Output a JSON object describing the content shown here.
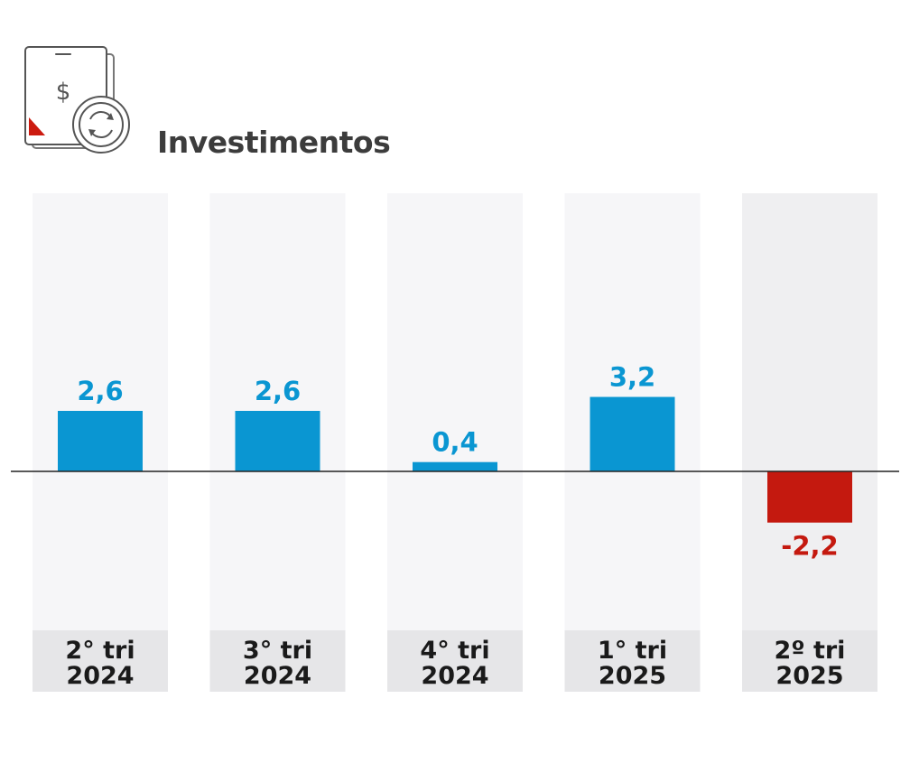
{
  "header": {
    "title": "Investimentos",
    "icon": "money-device-exchange-icon"
  },
  "chart_data": {
    "type": "bar",
    "title": "Investimentos",
    "categories": [
      {
        "line1": "2° tri",
        "line2": "2024"
      },
      {
        "line1": "3° tri",
        "line2": "2024"
      },
      {
        "line1": "4° tri",
        "line2": "2024"
      },
      {
        "line1": "1° tri",
        "line2": "2025"
      },
      {
        "line1": "2º tri",
        "line2": "2025"
      }
    ],
    "values": [
      2.6,
      2.6,
      0.4,
      3.2,
      -2.2
    ],
    "value_labels": [
      "2,6",
      "2,6",
      "0,4",
      "3,2",
      "-2,2"
    ],
    "highlighted_index": 4,
    "xlabel": "",
    "ylabel": "",
    "grid": false,
    "colors": {
      "positive": "#0a96d2",
      "negative": "#c4190f",
      "column_bg": "#f6f6f8",
      "column_bg_highlight": "#efeff1",
      "label_bg": "#e6e6e8",
      "axis": "#222222",
      "category_text": "#1a1a1a",
      "icon_accent": "#cc1b10",
      "icon_stroke": "#555555"
    }
  }
}
